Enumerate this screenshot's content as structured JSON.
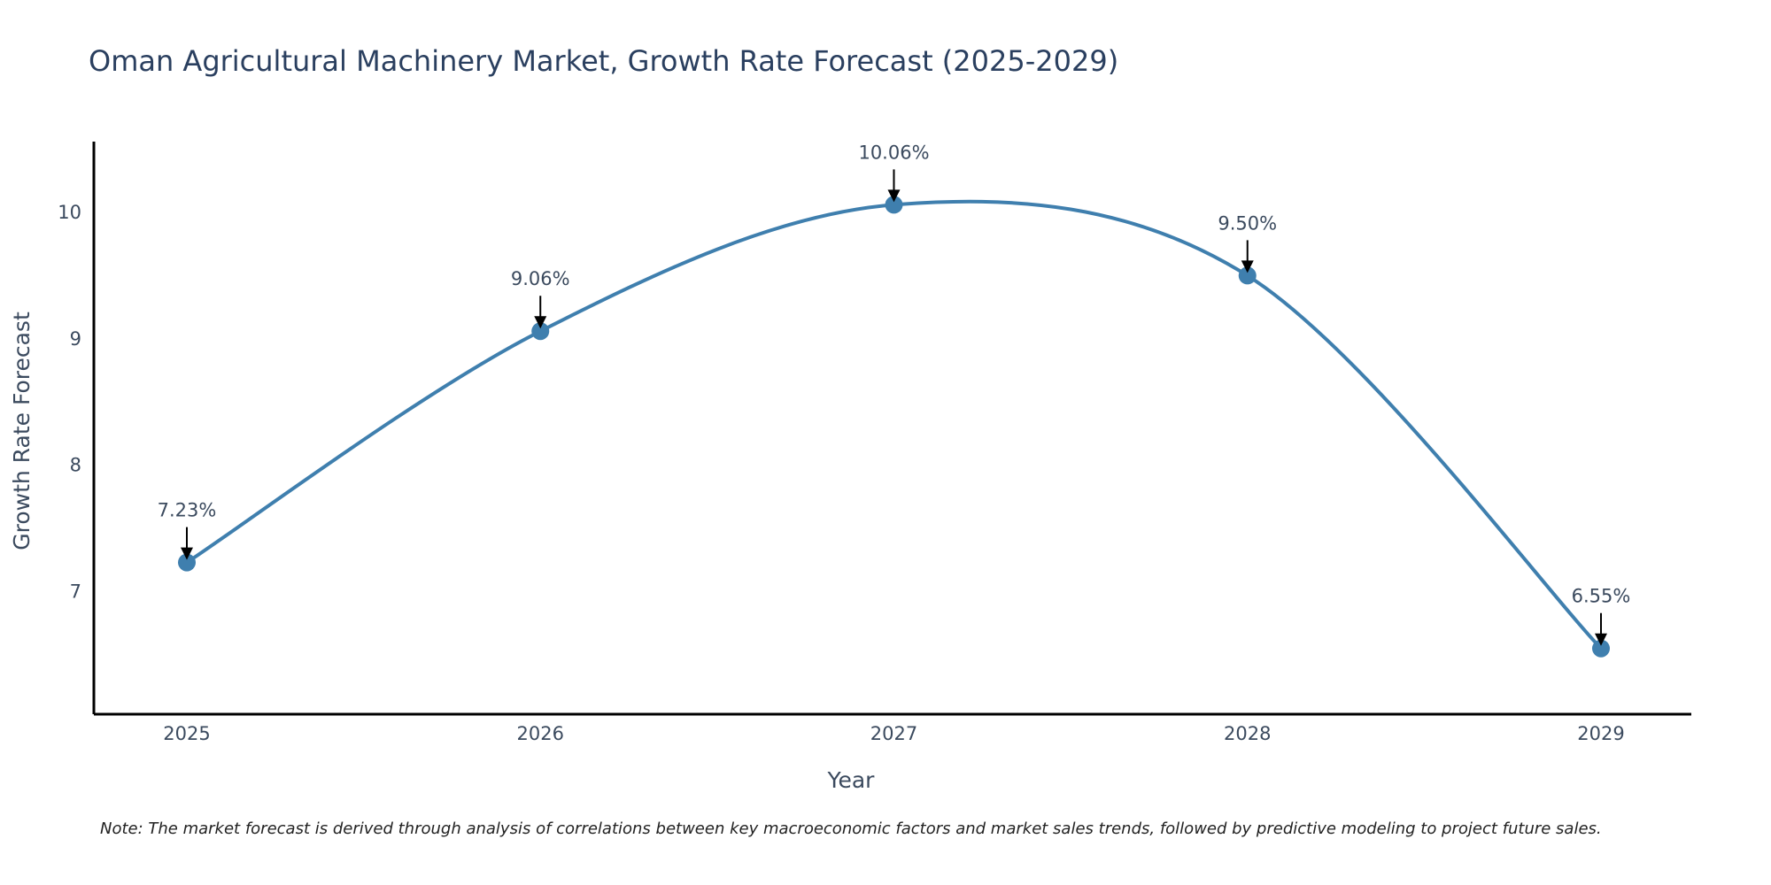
{
  "chart_data": {
    "type": "line",
    "title": "Oman Agricultural Machinery Market, Growth Rate Forecast (2025-2029)",
    "xlabel": "Year",
    "ylabel": "Growth Rate Forecast",
    "categories": [
      "2025",
      "2026",
      "2027",
      "2028",
      "2029"
    ],
    "values": [
      7.23,
      9.06,
      10.06,
      9.5,
      6.55
    ],
    "data_labels": [
      "7.23%",
      "9.06%",
      "10.06%",
      "9.50%",
      "6.55%"
    ],
    "ylim": [
      6.03,
      10.56
    ],
    "yticks": [
      7,
      8,
      9,
      10
    ],
    "ytick_labels": [
      "7",
      "8",
      "9",
      "10"
    ],
    "grid": false,
    "line_shape": "spline",
    "line_color": "#3f7fae",
    "marker_color": "#3f7fae",
    "note": "Note: The market forecast is derived through analysis of correlations between key macroeconomic factors and market sales trends, followed by predictive modeling to project future sales."
  }
}
